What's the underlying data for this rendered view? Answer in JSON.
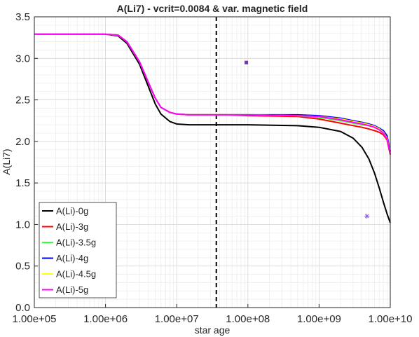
{
  "chart_data": {
    "type": "line",
    "title": "A(Li7) - vcrit=0.0084 & var. magnetic field",
    "xlabel": "star age",
    "ylabel": "A(Li7)",
    "xscale": "log",
    "xlim": [
      100000,
      10000000000
    ],
    "ylim": [
      0,
      3.5
    ],
    "xticks": [
      100000,
      1000000,
      10000000,
      100000000,
      1000000000,
      10000000000
    ],
    "xtick_labels": [
      "1.00e+05",
      "1.00e+06",
      "1.00e+07",
      "1.00e+08",
      "1.00e+09",
      "1.00e+10"
    ],
    "yticks": [
      0,
      0.5,
      1.0,
      1.5,
      2.0,
      2.5,
      3.0,
      3.5
    ],
    "ytick_labels": [
      "0.0",
      "0.5",
      "1.0",
      "1.5",
      "2.0",
      "2.5",
      "3.0",
      "3.5"
    ],
    "grid": true,
    "legend_position": "bottom-left",
    "vline_x": 36000000,
    "series": [
      {
        "name": "A(Li)-0g",
        "color": "#000000",
        "x": [
          100000,
          1000000,
          1500000,
          2000000,
          3000000,
          4000000,
          5000000,
          6000000,
          8000000,
          10000000,
          15000000,
          20000000,
          50000000,
          100000000,
          500000000,
          1000000000,
          2000000000,
          3000000000,
          4000000000,
          5000000000,
          6000000000,
          7000000000,
          8000000000,
          9000000000,
          10000000000
        ],
        "y": [
          3.29,
          3.29,
          3.27,
          3.18,
          2.93,
          2.66,
          2.45,
          2.33,
          2.24,
          2.21,
          2.2,
          2.2,
          2.2,
          2.2,
          2.19,
          2.17,
          2.12,
          2.04,
          1.93,
          1.79,
          1.62,
          1.44,
          1.27,
          1.13,
          1.02
        ]
      },
      {
        "name": "A(Li)-3g",
        "color": "#ff0000",
        "x": [
          100000,
          1000000,
          1500000,
          2000000,
          3000000,
          4000000,
          5000000,
          6000000,
          8000000,
          10000000,
          15000000,
          20000000,
          50000000,
          100000000,
          500000000,
          1000000000,
          2000000000,
          3000000000,
          4000000000,
          5000000000,
          6000000000,
          7000000000,
          8000000000,
          9000000000,
          10000000000
        ],
        "y": [
          3.29,
          3.29,
          3.28,
          3.2,
          2.96,
          2.71,
          2.52,
          2.41,
          2.35,
          2.33,
          2.32,
          2.32,
          2.32,
          2.31,
          2.3,
          2.27,
          2.22,
          2.19,
          2.17,
          2.15,
          2.13,
          2.11,
          2.08,
          2.02,
          1.84
        ]
      },
      {
        "name": "A(Li)-3.5g",
        "color": "#33ff33",
        "x": [
          100000,
          1000000,
          1500000,
          2000000,
          3000000,
          4000000,
          5000000,
          6000000,
          8000000,
          10000000,
          15000000,
          20000000,
          50000000,
          100000000,
          500000000,
          1000000000,
          2000000000,
          3000000000,
          4000000000,
          5000000000,
          6000000000,
          7000000000,
          8000000000,
          9000000000,
          10000000000
        ],
        "y": [
          3.29,
          3.29,
          3.28,
          3.2,
          2.96,
          2.71,
          2.52,
          2.41,
          2.35,
          2.33,
          2.32,
          2.32,
          2.32,
          2.32,
          2.31,
          2.29,
          2.25,
          2.22,
          2.2,
          2.19,
          2.17,
          2.15,
          2.12,
          2.06,
          1.87
        ]
      },
      {
        "name": "A(Li)-4g",
        "color": "#0000ff",
        "x": [
          100000,
          1000000,
          1500000,
          2000000,
          3000000,
          4000000,
          5000000,
          6000000,
          8000000,
          10000000,
          15000000,
          20000000,
          50000000,
          100000000,
          500000000,
          1000000000,
          2000000000,
          3000000000,
          4000000000,
          5000000000,
          6000000000,
          7000000000,
          8000000000,
          9000000000,
          10000000000
        ],
        "y": [
          3.29,
          3.29,
          3.28,
          3.2,
          2.96,
          2.71,
          2.52,
          2.41,
          2.35,
          2.33,
          2.32,
          2.32,
          2.32,
          2.32,
          2.32,
          2.31,
          2.28,
          2.25,
          2.23,
          2.21,
          2.19,
          2.16,
          2.13,
          2.07,
          1.88
        ]
      },
      {
        "name": "A(Li)-4.5g",
        "color": "#ffff00",
        "x": [
          100000,
          1000000,
          1500000,
          2000000,
          3000000,
          4000000,
          5000000,
          6000000,
          8000000,
          10000000,
          15000000,
          20000000,
          50000000,
          100000000,
          500000000,
          1000000000,
          2000000000,
          3000000000,
          4000000000,
          5000000000,
          6000000000,
          7000000000,
          8000000000,
          9000000000,
          10000000000
        ],
        "y": [
          3.29,
          3.29,
          3.28,
          3.2,
          2.96,
          2.71,
          2.52,
          2.41,
          2.35,
          2.33,
          2.32,
          2.32,
          2.32,
          2.32,
          2.31,
          2.3,
          2.27,
          2.24,
          2.22,
          2.2,
          2.18,
          2.15,
          2.11,
          2.04,
          1.86
        ]
      },
      {
        "name": "A(Li)-5g",
        "color": "#ff00ff",
        "x": [
          100000,
          1000000,
          1500000,
          2000000,
          3000000,
          4000000,
          5000000,
          6000000,
          8000000,
          10000000,
          15000000,
          20000000,
          50000000,
          100000000,
          500000000,
          1000000000,
          2000000000,
          3000000000,
          4000000000,
          5000000000,
          6000000000,
          7000000000,
          8000000000,
          9000000000,
          10000000000
        ],
        "y": [
          3.29,
          3.29,
          3.28,
          3.2,
          2.96,
          2.71,
          2.52,
          2.41,
          2.35,
          2.33,
          2.32,
          2.32,
          2.32,
          2.32,
          2.31,
          2.3,
          2.26,
          2.23,
          2.21,
          2.19,
          2.17,
          2.14,
          2.1,
          2.03,
          1.85
        ]
      }
    ],
    "markers": [
      {
        "x": 95000000,
        "y": 2.95,
        "shape": "square",
        "color": "#7b2fbf"
      },
      {
        "x": 4700000000,
        "y": 1.1,
        "shape": "asterisk",
        "color": "#8a5cf0"
      }
    ]
  }
}
